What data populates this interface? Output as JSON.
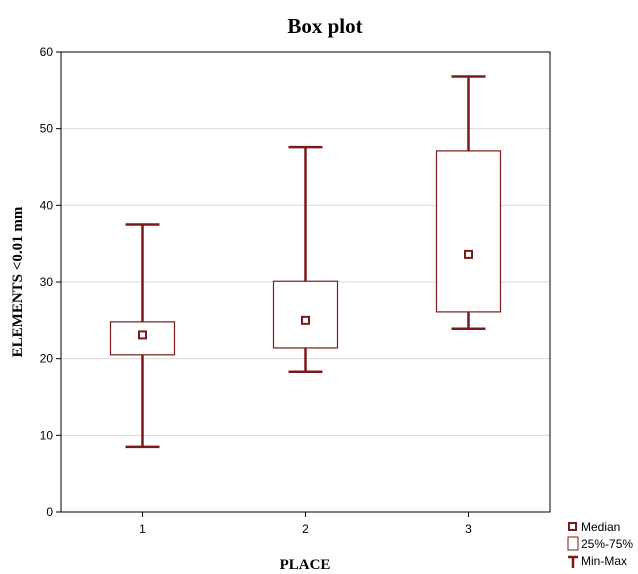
{
  "chart_data": {
    "type": "box",
    "title": "Box plot",
    "xlabel": "PLACE",
    "ylabel": "ELEMENTS <0.01 mm",
    "ylim": [
      0,
      60
    ],
    "yticks": [
      0,
      10,
      20,
      30,
      40,
      50,
      60
    ],
    "grid": "horizontal",
    "color": "#7b1a1a",
    "categories": [
      "1",
      "2",
      "3"
    ],
    "boxes": [
      {
        "category": "1",
        "min": 8.5,
        "q1": 20.5,
        "median": 23.1,
        "q3": 24.8,
        "max": 37.5
      },
      {
        "category": "2",
        "min": 18.3,
        "q1": 21.4,
        "median": 25.0,
        "q3": 30.1,
        "max": 47.6
      },
      {
        "category": "3",
        "min": 23.9,
        "q1": 26.1,
        "median": 33.6,
        "q3": 47.1,
        "max": 56.8
      }
    ],
    "legend": {
      "placement": "bottom-right",
      "items": [
        {
          "symbol": "square-point",
          "label": "Median"
        },
        {
          "symbol": "box",
          "label": "25%-75%"
        },
        {
          "symbol": "whisker",
          "label": "Min-Max"
        }
      ]
    }
  }
}
